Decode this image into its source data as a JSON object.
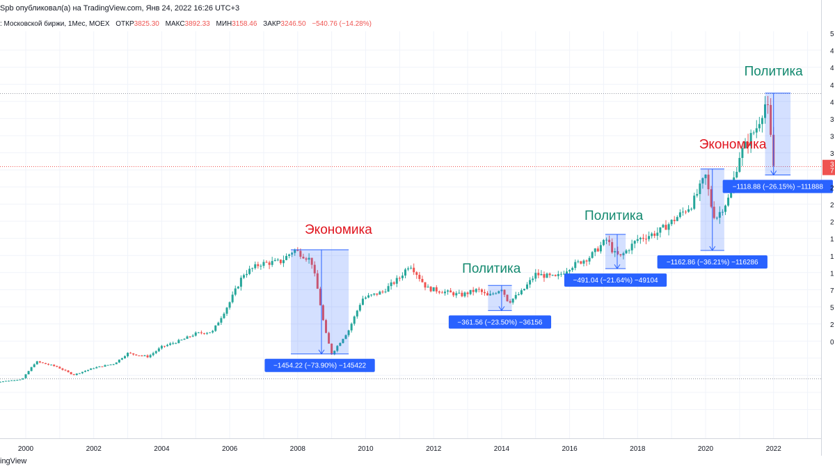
{
  "header": {
    "publisher": "Spb опубликовал(а) на TradingView.com, Янв 24, 2022 16:26 UTC+3",
    "symbol": ": Московской биржи, 1Мес, MOEX",
    "ohlc": [
      {
        "key": "ОТКР",
        "value": "3825.30"
      },
      {
        "key": "МАКС",
        "value": "3892.33"
      },
      {
        "key": "МИН",
        "value": "3158.46"
      },
      {
        "key": "ЗАКР",
        "value": "3246.50"
      }
    ],
    "change": "−540.76 (−14.28%)"
  },
  "footer": {
    "brand": "ingView"
  },
  "colors": {
    "up": "#26a69a",
    "down": "#ef5350",
    "box": "#2962ff",
    "label_bg": "#2962ff",
    "politika": "#13896f",
    "ekonomika": "#e0141e"
  },
  "chart_data": {
    "type": "candlestick",
    "interval": "1Мес",
    "xlim": [
      1999.0,
      2024.5
    ],
    "ylim": [
      0,
      4250
    ],
    "x_ticks": [
      "2000",
      "2002",
      "2004",
      "2006",
      "2008",
      "2010",
      "2012",
      "2014",
      "2016",
      "2018",
      "2020",
      "2022"
    ],
    "price_axis_labels": [
      "5",
      "4",
      "4",
      "4",
      "4",
      "3",
      "3",
      "3",
      "2",
      "2",
      "2",
      "2",
      "1",
      "1",
      "1",
      "7",
      "5",
      "2",
      "0"
    ],
    "current_price_tag": [
      "3",
      "7"
    ],
    "horizontal_lines": [
      {
        "value": 4290,
        "style": "dotted"
      },
      {
        "value": 3246.5,
        "style": "dotted-red"
      },
      {
        "value": 210,
        "style": "dotted"
      }
    ],
    "anchors": [
      [
        1999.0,
        150
      ],
      [
        1999.9,
        200
      ],
      [
        2000.3,
        450
      ],
      [
        2000.9,
        380
      ],
      [
        2001.4,
        260
      ],
      [
        2002.0,
        360
      ],
      [
        2002.6,
        420
      ],
      [
        2003.0,
        570
      ],
      [
        2003.6,
        520
      ],
      [
        2004.0,
        660
      ],
      [
        2004.6,
        760
      ],
      [
        2005.0,
        850
      ],
      [
        2005.5,
        880
      ],
      [
        2006.0,
        1300
      ],
      [
        2006.4,
        1700
      ],
      [
        2006.9,
        1850
      ],
      [
        2007.5,
        1880
      ],
      [
        2007.9,
        2050
      ],
      [
        2008.4,
        1900
      ],
      [
        2008.6,
        1450
      ],
      [
        2008.8,
        900
      ],
      [
        2009.0,
        560
      ],
      [
        2009.5,
        900
      ],
      [
        2009.9,
        1350
      ],
      [
        2010.5,
        1450
      ],
      [
        2011.0,
        1650
      ],
      [
        2011.3,
        1850
      ],
      [
        2011.8,
        1500
      ],
      [
        2012.3,
        1450
      ],
      [
        2012.8,
        1400
      ],
      [
        2013.3,
        1480
      ],
      [
        2013.6,
        1380
      ],
      [
        2014.0,
        1500
      ],
      [
        2014.2,
        1300
      ],
      [
        2014.6,
        1450
      ],
      [
        2015.0,
        1700
      ],
      [
        2015.6,
        1650
      ],
      [
        2016.0,
        1800
      ],
      [
        2016.6,
        1950
      ],
      [
        2017.1,
        2200
      ],
      [
        2017.3,
        2000
      ],
      [
        2017.5,
        1950
      ],
      [
        2018.0,
        2200
      ],
      [
        2018.6,
        2300
      ],
      [
        2019.0,
        2450
      ],
      [
        2019.6,
        2700
      ],
      [
        2020.0,
        3100
      ],
      [
        2020.2,
        2600
      ],
      [
        2020.3,
        2500
      ],
      [
        2020.7,
        2800
      ],
      [
        2021.0,
        3400
      ],
      [
        2021.5,
        3800
      ],
      [
        2021.8,
        4200
      ],
      [
        2022.0,
        3246
      ]
    ],
    "annotations": [
      {
        "text": "Экономика",
        "kind": "ekonomika",
        "x": 2009.2,
        "y": 2280
      },
      {
        "text": "Политика",
        "kind": "politika",
        "x": 2013.7,
        "y": 1720
      },
      {
        "text": "Политика",
        "kind": "politika",
        "x": 2017.3,
        "y": 2480
      },
      {
        "text": "Экономика",
        "kind": "ekonomika",
        "x": 2020.8,
        "y": 3500
      },
      {
        "text": "Политика",
        "kind": "politika",
        "x": 2022.0,
        "y": 4540
      }
    ],
    "measurements": [
      {
        "x0": 2007.8,
        "x1": 2009.5,
        "y_top": 2050,
        "y_bottom": 560,
        "arrow_x": 2008.7,
        "label": "−1454.22 (−73.90%) −145422"
      },
      {
        "x0": 2013.6,
        "x1": 2014.3,
        "y_top": 1540,
        "y_bottom": 1180,
        "arrow_x": 2014.0,
        "label": "−361.56 (−23.50%) −36156"
      },
      {
        "x0": 2017.05,
        "x1": 2017.65,
        "y_top": 2270,
        "y_bottom": 1780,
        "arrow_x": 2017.4,
        "label": "−491.04 (−21.64%) −49104"
      },
      {
        "x0": 2019.85,
        "x1": 2020.55,
        "y_top": 3205,
        "y_bottom": 2040,
        "arrow_x": 2020.2,
        "label": "−1162.86 (−36.21%) −116286"
      },
      {
        "x0": 2021.75,
        "x1": 2022.5,
        "y_top": 4290,
        "y_bottom": 3120,
        "arrow_x": 2022.0,
        "label": "−1118.88 (−26.15%) −111888"
      }
    ]
  }
}
